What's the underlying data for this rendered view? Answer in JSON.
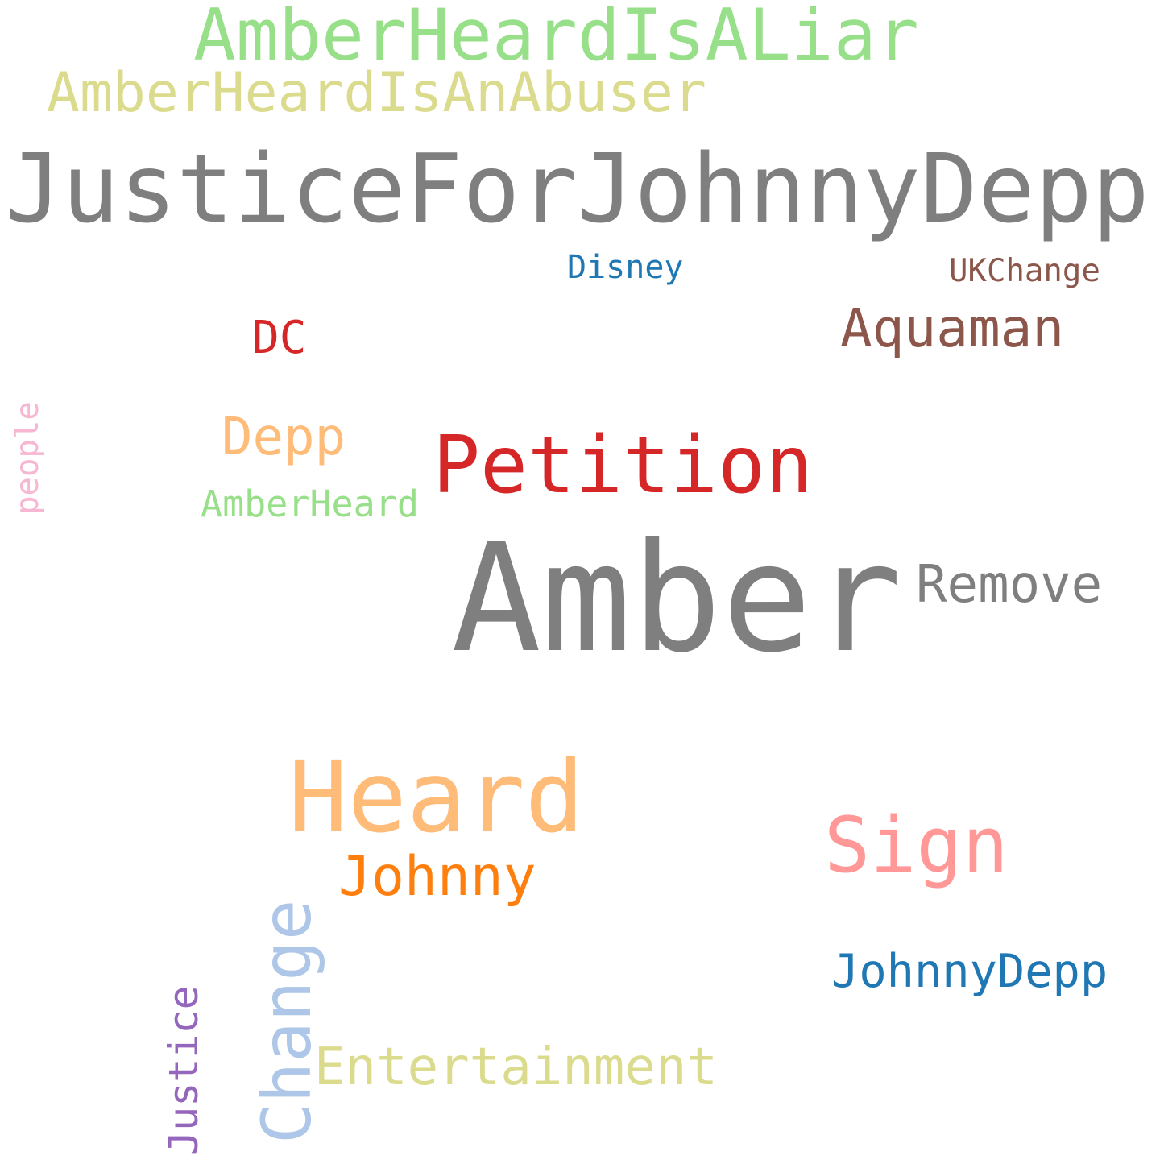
{
  "words": {
    "amberheardisaliar": {
      "text": "AmberHeardIsALiar",
      "color": "#98df8a"
    },
    "amberheardisanabuser": {
      "text": "AmberHeardIsAnAbuser",
      "color": "#dbdb8d"
    },
    "justiceforjohnnydepp": {
      "text": "JusticeForJohnnyDepp",
      "color": "#7f7f7f"
    },
    "disney": {
      "text": "Disney",
      "color": "#1f77b4"
    },
    "ukchange": {
      "text": "UKChange",
      "color": "#8c564b"
    },
    "dc": {
      "text": "DC",
      "color": "#d62728"
    },
    "aquaman": {
      "text": "Aquaman",
      "color": "#8c564b"
    },
    "people": {
      "text": "people",
      "color": "#f7b6d2"
    },
    "depp": {
      "text": "Depp",
      "color": "#ffbb78"
    },
    "petition": {
      "text": "Petition",
      "color": "#d62728"
    },
    "amberheard": {
      "text": "AmberHeard",
      "color": "#98df8a"
    },
    "amber": {
      "text": "Amber",
      "color": "#7f7f7f"
    },
    "remove": {
      "text": "Remove",
      "color": "#7f7f7f"
    },
    "heard": {
      "text": "Heard",
      "color": "#ffbb78"
    },
    "sign": {
      "text": "Sign",
      "color": "#ff9896"
    },
    "johnny": {
      "text": "Johnny",
      "color": "#ff7f0e"
    },
    "change": {
      "text": "Change",
      "color": "#aec7e8"
    },
    "johnnydepp": {
      "text": "JohnnyDepp",
      "color": "#1f77b4"
    },
    "justice": {
      "text": "Justice",
      "color": "#9467bd"
    },
    "entertainment": {
      "text": "Entertainment",
      "color": "#dbdb8d"
    }
  }
}
